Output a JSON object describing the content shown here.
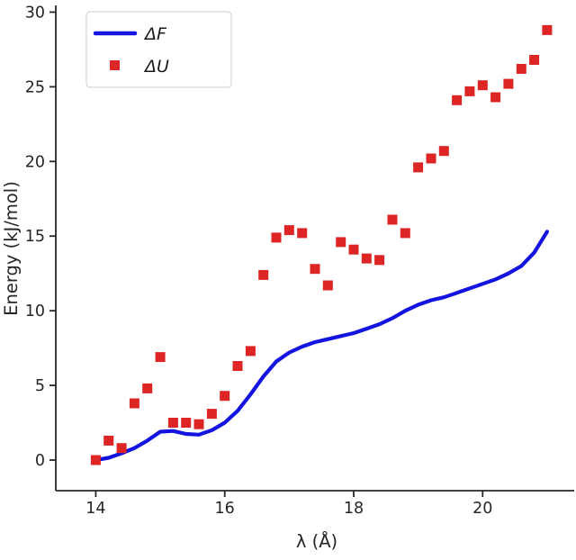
{
  "chart_data": {
    "type": "line",
    "title": "",
    "xlabel": "λ (Å)",
    "ylabel": "Energy (kJ/mol)",
    "xlim": [
      13.38,
      21.42
    ],
    "ylim": [
      -2.05,
      30.45
    ],
    "xticks": [
      14,
      16,
      18,
      20
    ],
    "yticks": [
      0,
      5,
      10,
      15,
      20,
      25,
      30
    ],
    "grid": false,
    "legend_position": "upper-left",
    "x": [
      14.0,
      14.2,
      14.4,
      14.6,
      14.8,
      15.0,
      15.2,
      15.4,
      15.6,
      15.8,
      16.0,
      16.2,
      16.4,
      16.6,
      16.8,
      17.0,
      17.2,
      17.4,
      17.6,
      17.8,
      18.0,
      18.2,
      18.4,
      18.6,
      18.8,
      19.0,
      19.2,
      19.4,
      19.6,
      19.8,
      20.0,
      20.2,
      20.4,
      20.6,
      20.8,
      21.0
    ],
    "series": [
      {
        "name": "ΔF",
        "style": "line",
        "color": "#1414e0",
        "values": [
          0.0,
          0.15,
          0.45,
          0.8,
          1.3,
          1.9,
          1.95,
          1.75,
          1.7,
          2.0,
          2.5,
          3.3,
          4.4,
          5.6,
          6.6,
          7.2,
          7.6,
          7.9,
          8.1,
          8.3,
          8.5,
          8.8,
          9.1,
          9.5,
          10.0,
          10.4,
          10.7,
          10.9,
          11.2,
          11.5,
          11.8,
          12.1,
          12.5,
          13.0,
          13.9,
          15.3
        ]
      },
      {
        "name": "ΔU",
        "style": "scatter",
        "color": "#dd2525",
        "values": [
          0.0,
          1.3,
          0.8,
          3.8,
          4.8,
          6.9,
          2.5,
          2.5,
          2.4,
          3.1,
          4.3,
          6.3,
          7.3,
          12.4,
          14.9,
          15.4,
          15.2,
          12.8,
          11.7,
          14.6,
          14.1,
          13.5,
          13.4,
          16.1,
          15.2,
          19.6,
          20.2,
          20.7,
          24.1,
          24.7,
          25.1,
          24.3,
          25.2,
          26.2,
          26.8,
          28.8
        ]
      }
    ]
  }
}
